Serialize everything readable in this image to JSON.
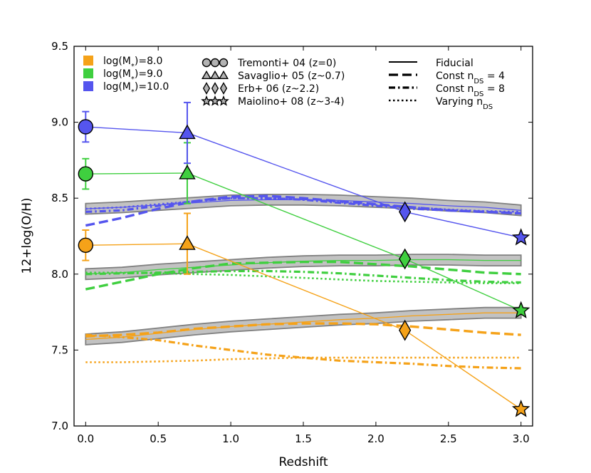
{
  "chart_data": {
    "type": "line",
    "title": "",
    "xlabel": "Redshift",
    "ylabel": "12+log(O/H)",
    "xlim": [
      -0.08,
      3.08
    ],
    "ylim": [
      7.0,
      9.5
    ],
    "xticks": [
      "0.0",
      "0.5",
      "1.0",
      "1.5",
      "2.0",
      "2.5",
      "3.0"
    ],
    "yticks": [
      "7.0",
      "7.5",
      "8.0",
      "8.5",
      "9.0",
      "9.5"
    ],
    "colors": {
      "m8": "#f5a219",
      "m9": "#3fcf3f",
      "m10": "#5555ee",
      "band": "#b3b3b3",
      "band_edge": "#808080",
      "marker_gray": "#b3b3b3"
    },
    "mass_legend": [
      {
        "label": "log(M",
        "sub": "*",
        "rest": ")=8.0",
        "color": "#f5a219"
      },
      {
        "label": "log(M",
        "sub": "*",
        "rest": ")=9.0",
        "color": "#3fcf3f"
      },
      {
        "label": "log(M",
        "sub": "*",
        "rest": ")=10.0",
        "color": "#5555ee"
      }
    ],
    "obs_legend": [
      {
        "marker": "circle",
        "label": "Tremonti+ 04 (z=0)"
      },
      {
        "marker": "triangle",
        "label": "Savaglio+ 05 (z~0.7)"
      },
      {
        "marker": "diamond",
        "label": "Erb+ 06 (z~2.2)"
      },
      {
        "marker": "star",
        "label": "Maiolino+ 08 (z~3-4)"
      }
    ],
    "model_legend": [
      {
        "style": "solid",
        "label": "Fiducial"
      },
      {
        "style": "dashed",
        "label": "Const n",
        "sub": "DS",
        "rest": " = 4"
      },
      {
        "style": "dashdot",
        "label": "Const n",
        "sub": "DS",
        "rest": " = 8"
      },
      {
        "style": "dotted",
        "label": "Varying n",
        "sub": "DS",
        "rest": ""
      }
    ],
    "observations": [
      {
        "name": "log(M*)=8.0",
        "color": "#f5a219",
        "points": [
          {
            "z": 0.0,
            "y": 8.19,
            "err": 0.1,
            "marker": "circle"
          },
          {
            "z": 0.7,
            "y": 8.2,
            "err": 0.2,
            "marker": "triangle"
          },
          {
            "z": 2.2,
            "y": 7.63,
            "marker": "diamond"
          },
          {
            "z": 3.0,
            "y": 7.11,
            "marker": "star"
          }
        ]
      },
      {
        "name": "log(M*)=9.0",
        "color": "#3fcf3f",
        "points": [
          {
            "z": 0.0,
            "y": 8.66,
            "err": 0.1,
            "marker": "circle"
          },
          {
            "z": 0.7,
            "y": 8.665,
            "err": 0.2,
            "marker": "triangle"
          },
          {
            "z": 2.2,
            "y": 8.1,
            "marker": "diamond"
          },
          {
            "z": 3.0,
            "y": 7.76,
            "marker": "star"
          }
        ]
      },
      {
        "name": "log(M*)=10.0",
        "color": "#5555ee",
        "points": [
          {
            "z": 0.0,
            "y": 8.97,
            "err": 0.1,
            "marker": "circle"
          },
          {
            "z": 0.7,
            "y": 8.93,
            "err": 0.2,
            "marker": "triangle"
          },
          {
            "z": 2.2,
            "y": 8.41,
            "marker": "diamond"
          },
          {
            "z": 3.0,
            "y": 8.24,
            "marker": "star"
          }
        ]
      }
    ],
    "models": [
      {
        "mass": "m8",
        "color": "#f5a219",
        "z": [
          0.0,
          0.25,
          0.5,
          0.75,
          1.0,
          1.25,
          1.5,
          1.75,
          2.0,
          2.25,
          2.5,
          2.75,
          3.0
        ],
        "fiducial": [
          7.57,
          7.585,
          7.61,
          7.635,
          7.655,
          7.67,
          7.685,
          7.7,
          7.71,
          7.725,
          7.735,
          7.745,
          7.745
        ],
        "band_halfwidth": 0.035,
        "const4": [
          7.59,
          7.6,
          7.615,
          7.64,
          7.655,
          7.67,
          7.675,
          7.675,
          7.67,
          7.655,
          7.635,
          7.615,
          7.6
        ],
        "const8": [
          7.6,
          7.585,
          7.565,
          7.53,
          7.5,
          7.47,
          7.45,
          7.43,
          7.42,
          7.41,
          7.395,
          7.385,
          7.38
        ],
        "varying": [
          7.42,
          7.42,
          7.425,
          7.43,
          7.44,
          7.445,
          7.45,
          7.45,
          7.45,
          7.45,
          7.45,
          7.45,
          7.45
        ]
      },
      {
        "mass": "m9",
        "color": "#3fcf3f",
        "z": [
          0.0,
          0.25,
          0.5,
          0.75,
          1.0,
          1.25,
          1.5,
          1.75,
          2.0,
          2.25,
          2.5,
          2.75,
          3.0
        ],
        "fiducial": [
          8.0,
          8.01,
          8.03,
          8.045,
          8.06,
          8.075,
          8.085,
          8.09,
          8.09,
          8.095,
          8.095,
          8.09,
          8.09
        ],
        "band_halfwidth": 0.035,
        "const4": [
          7.9,
          7.95,
          8.0,
          8.04,
          8.07,
          8.075,
          8.08,
          8.08,
          8.065,
          8.05,
          8.03,
          8.01,
          8.0
        ],
        "const8": [
          8.0,
          8.005,
          8.01,
          8.015,
          8.02,
          8.02,
          8.015,
          8.005,
          7.99,
          7.975,
          7.96,
          7.95,
          7.945
        ],
        "varying": [
          8.01,
          8.01,
          8.005,
          8.0,
          7.995,
          7.985,
          7.975,
          7.965,
          7.955,
          7.95,
          7.945,
          7.94,
          7.94
        ]
      },
      {
        "mass": "m10",
        "color": "#5555ee",
        "z": [
          0.0,
          0.25,
          0.5,
          0.75,
          1.0,
          1.25,
          1.5,
          1.75,
          2.0,
          2.25,
          2.5,
          2.75,
          3.0
        ],
        "fiducial": [
          8.43,
          8.44,
          8.455,
          8.47,
          8.485,
          8.49,
          8.49,
          8.485,
          8.475,
          8.465,
          8.45,
          8.44,
          8.42
        ],
        "band_halfwidth": 0.035,
        "const4": [
          8.32,
          8.37,
          8.43,
          8.48,
          8.51,
          8.515,
          8.5,
          8.48,
          8.46,
          8.44,
          8.42,
          8.41,
          8.4
        ],
        "const8": [
          8.41,
          8.42,
          8.45,
          8.48,
          8.5,
          8.5,
          8.49,
          8.47,
          8.45,
          8.43,
          8.42,
          8.41,
          8.4
        ],
        "varying": [
          8.43,
          8.44,
          8.46,
          8.48,
          8.5,
          8.5,
          8.49,
          8.475,
          8.455,
          8.44,
          8.425,
          8.415,
          8.41
        ]
      }
    ]
  }
}
